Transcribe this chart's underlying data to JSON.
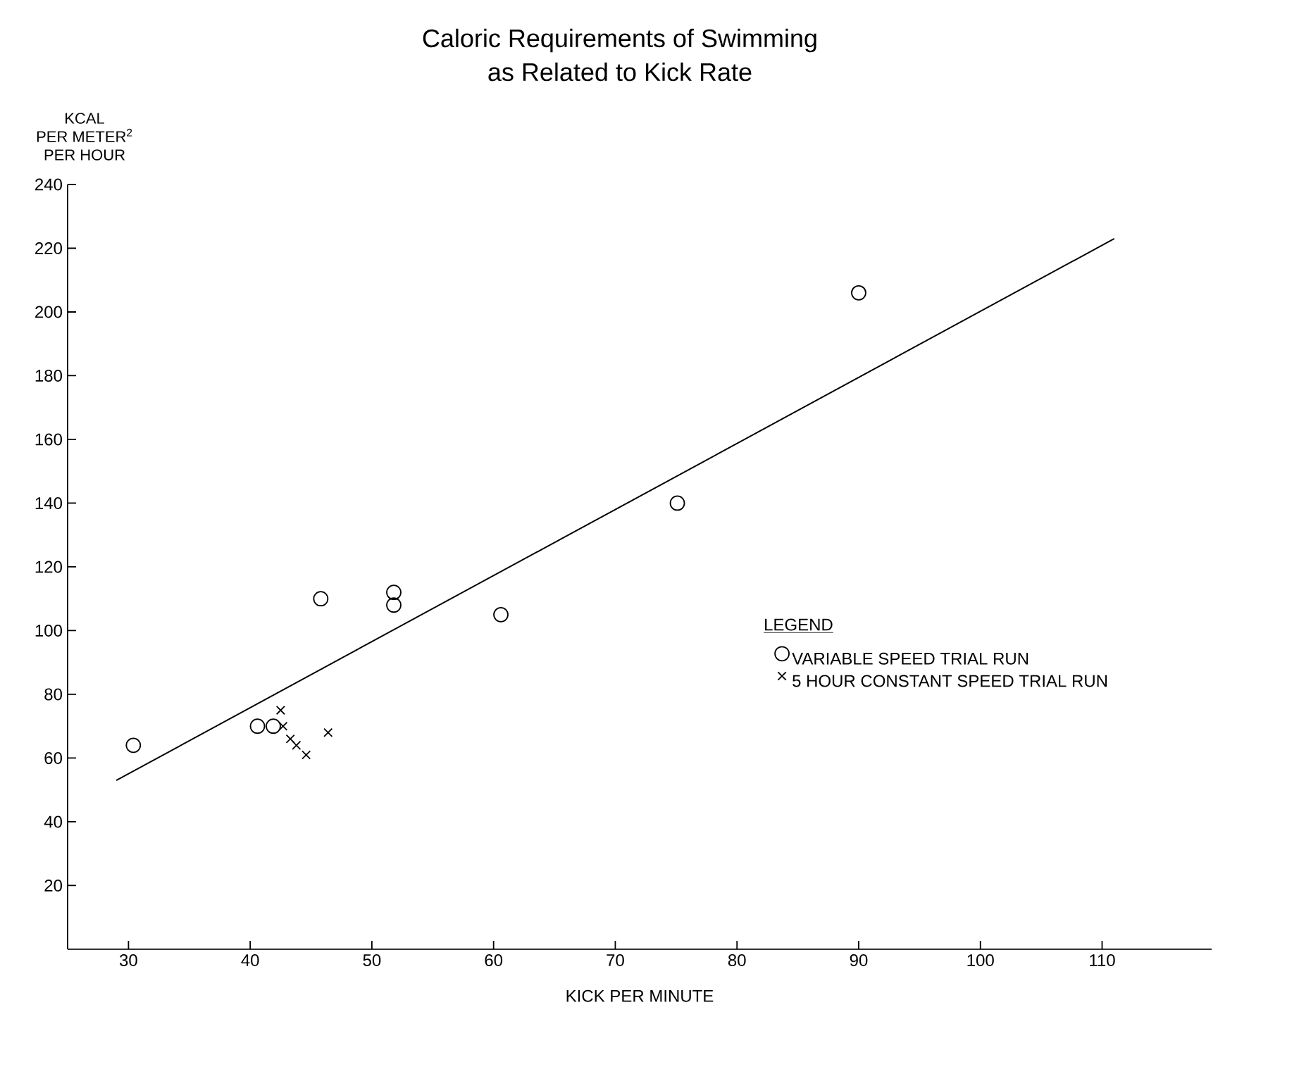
{
  "chart_data": {
    "type": "scatter",
    "title": "Caloric Requirements of Swimming\nas Related to Kick Rate",
    "xlabel": "KICK PER MINUTE",
    "ylabel": "KCAL\nPER METER$^{2}$\nPER HOUR",
    "legend_title": "LEGEND",
    "xlim": [
      25,
      119
    ],
    "ylim": [
      0,
      240
    ],
    "xticks": [
      30,
      40,
      50,
      60,
      70,
      80,
      90,
      100,
      110
    ],
    "yticks": [
      20,
      40,
      60,
      80,
      100,
      120,
      140,
      160,
      180,
      200,
      220,
      240
    ],
    "grid": false,
    "legend": "right",
    "series": [
      {
        "name": "VARIABLE SPEED TRIAL RUN",
        "color": "#000000",
        "marker": "circle",
        "x": [
          30.4,
          40.6,
          41.9,
          45.8,
          51.8,
          51.8,
          60.6,
          75.1,
          90.0
        ],
        "values": [
          64,
          70,
          70,
          110,
          112,
          108,
          105,
          140,
          206
        ]
      },
      {
        "name": "5 HOUR CONSTANT SPEED TRIAL RUN",
        "color": "#000000",
        "marker": "cross",
        "x": [
          42.5,
          42.7,
          43.3,
          43.8,
          44.6,
          46.4
        ],
        "values": [
          75,
          70,
          66,
          64,
          61,
          68
        ]
      },
      {
        "type": "line",
        "color": "#000000",
        "marker": "none",
        "line_style": "solid",
        "x": [
          29,
          111
        ],
        "values": [
          53,
          223
        ]
      }
    ]
  }
}
